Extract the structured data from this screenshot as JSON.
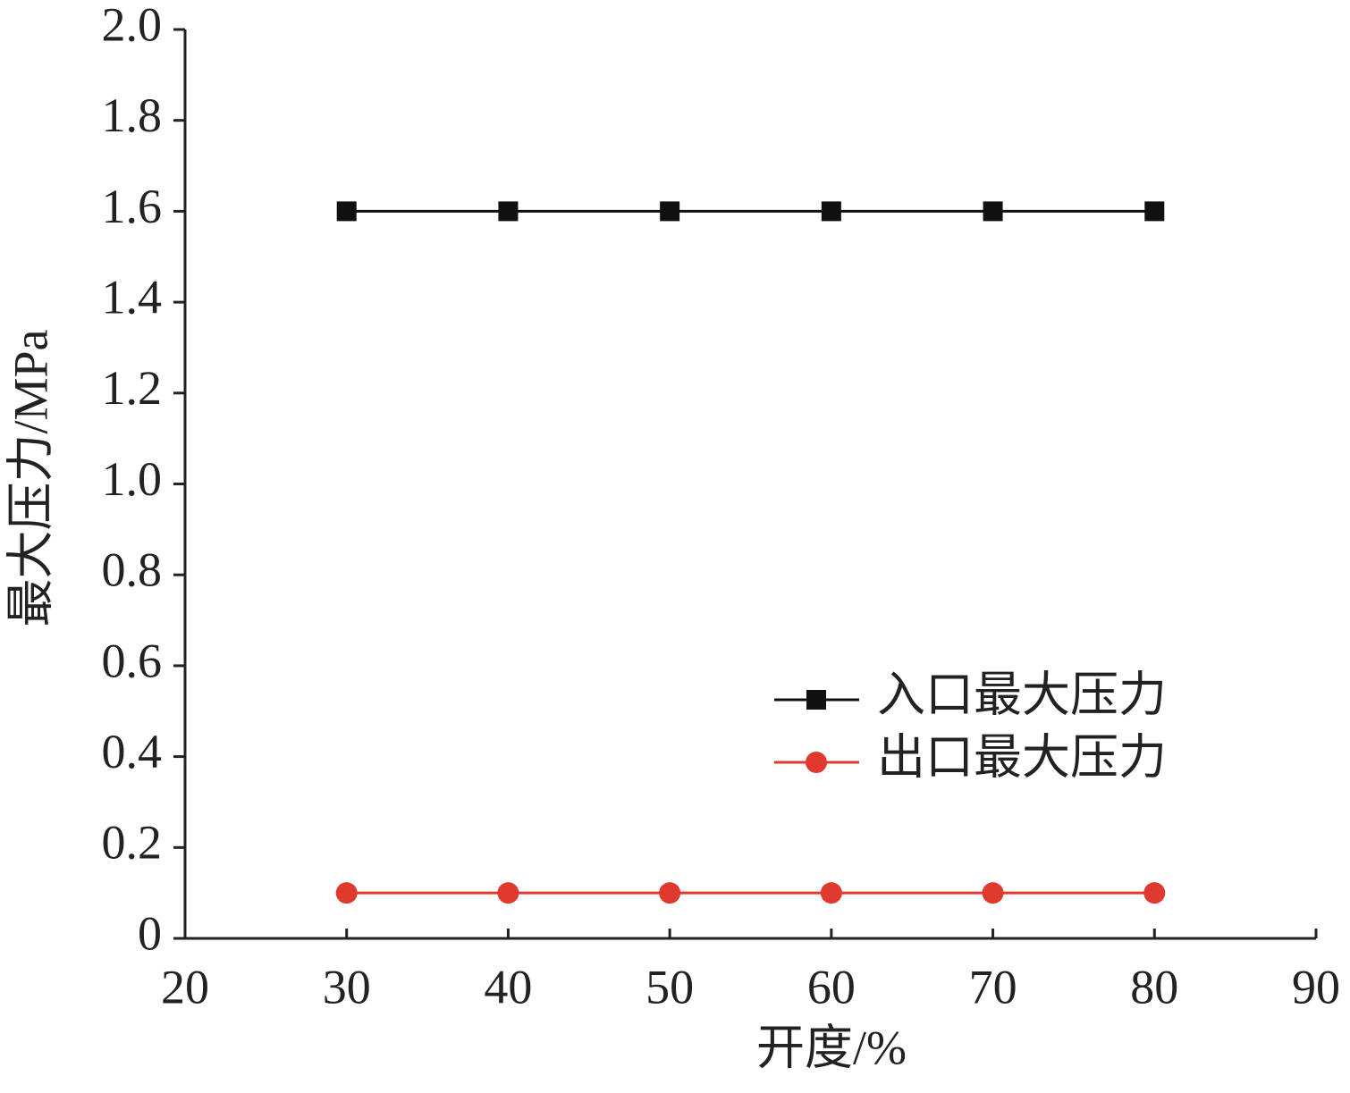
{
  "chart_data": {
    "type": "line",
    "x_label": "开度/%",
    "y_label": "最大压力/MPa",
    "x": [
      30,
      40,
      50,
      60,
      70,
      80
    ],
    "series": [
      {
        "name": "入口最大压力",
        "color": "#111111",
        "marker": "square",
        "values": [
          1.6,
          1.6,
          1.6,
          1.6,
          1.6,
          1.6
        ]
      },
      {
        "name": "出口最大压力",
        "color": "#e03a2e",
        "marker": "circle",
        "values": [
          0.1,
          0.1,
          0.1,
          0.1,
          0.1,
          0.1
        ]
      }
    ],
    "xlim": [
      20,
      90
    ],
    "xticks": [
      20,
      30,
      40,
      50,
      60,
      70,
      80,
      90
    ],
    "ylim": [
      0,
      2
    ],
    "yticks": [
      0,
      0.2,
      0.4,
      0.6,
      0.8,
      {
        "value": 1,
        "label": "1.0"
      },
      1.2,
      1.4,
      1.6,
      1.8,
      {
        "value": 2,
        "label": "2.0"
      }
    ],
    "grid": false,
    "legend": "right"
  }
}
